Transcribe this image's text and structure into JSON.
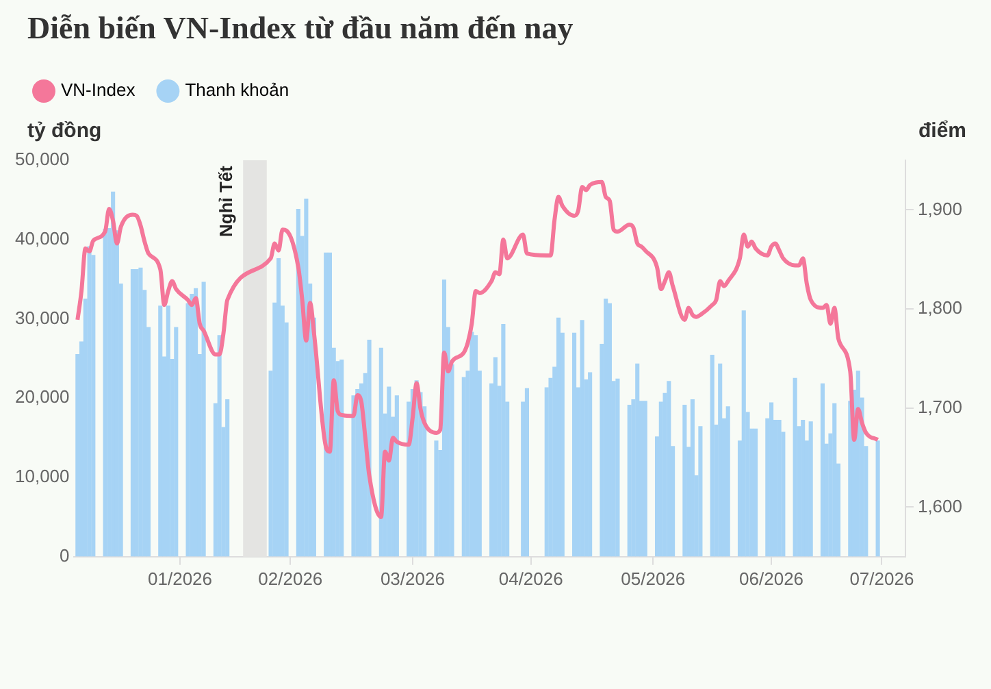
{
  "chart_data": {
    "type": "bar",
    "title": "Diễn biến VN-Index từ đầu năm đến nay",
    "ylabel": "tỷ đồng",
    "y2label": "điểm",
    "x": [
      "2026-01-05",
      "2026-01-06",
      "2026-01-07",
      "2026-01-08",
      "2026-01-09",
      "2026-01-12",
      "2026-01-13",
      "2026-01-14",
      "2026-01-15",
      "2026-01-16",
      "2026-01-19",
      "2026-01-20",
      "2026-01-21",
      "2026-01-22",
      "2026-01-23",
      "2026-01-26",
      "2026-01-27",
      "2026-01-28",
      "2026-01-29",
      "2026-01-30",
      "2026-02-02",
      "2026-02-03",
      "2026-02-04",
      "2026-02-05",
      "2026-02-06",
      "2026-02-09",
      "2026-02-10",
      "2026-02-11",
      "2026-02-12",
      "2026-02-23",
      "2026-02-24",
      "2026-02-25",
      "2026-02-26",
      "2026-02-27",
      "2026-03-02",
      "2026-03-03",
      "2026-03-04",
      "2026-03-05",
      "2026-03-06",
      "2026-03-09",
      "2026-03-10",
      "2026-03-11",
      "2026-03-12",
      "2026-03-13",
      "2026-03-16",
      "2026-03-17",
      "2026-03-18",
      "2026-03-19",
      "2026-03-20",
      "2026-03-23",
      "2026-03-24",
      "2026-03-25",
      "2026-03-26",
      "2026-03-27",
      "2026-03-30",
      "2026-03-31",
      "2026-04-01",
      "2026-04-02",
      "2026-04-03",
      "2026-04-06",
      "2026-04-07",
      "2026-04-08",
      "2026-04-09",
      "2026-04-10",
      "2026-04-13",
      "2026-04-14",
      "2026-04-15",
      "2026-04-16",
      "2026-04-17",
      "2026-04-20",
      "2026-04-21",
      "2026-04-22",
      "2026-04-23",
      "2026-04-24",
      "2026-04-28",
      "2026-04-29",
      "2026-05-04",
      "2026-05-05",
      "2026-05-06",
      "2026-05-07",
      "2026-05-08",
      "2026-05-11",
      "2026-05-12",
      "2026-05-13",
      "2026-05-14",
      "2026-05-15",
      "2026-05-18",
      "2026-05-19",
      "2026-05-20",
      "2026-05-21",
      "2026-05-22",
      "2026-05-25",
      "2026-05-26",
      "2026-05-27",
      "2026-05-28",
      "2026-05-29",
      "2026-06-01",
      "2026-06-02",
      "2026-06-03",
      "2026-06-04",
      "2026-06-05",
      "2026-06-08",
      "2026-06-09",
      "2026-06-10",
      "2026-06-11",
      "2026-06-12",
      "2026-06-15",
      "2026-06-16",
      "2026-06-17",
      "2026-06-18",
      "2026-06-19",
      "2026-06-22",
      "2026-06-23",
      "2026-06-24",
      "2026-06-25",
      "2026-06-26",
      "2026-06-29",
      "2026-06-30",
      "2026-07-01",
      "2026-07-02",
      "2026-07-03",
      "2026-07-06",
      "2026-07-07",
      "2026-07-08",
      "2026-07-09",
      "2026-07-10",
      "2026-07-13",
      "2026-07-14",
      "2026-07-15",
      "2026-07-16",
      "2026-07-17",
      "2026-07-20",
      "2026-07-21",
      "2026-07-22",
      "2026-07-23",
      "2026-07-24",
      "2026-07-27"
    ],
    "series": [
      {
        "name": "VN-Index",
        "type": "line",
        "axis": "y2",
        "color": "#f4779a",
        "values": [
          1789,
          1818,
          1861,
          1858,
          1869,
          1878,
          1901,
          1889,
          1866,
          1883,
          1895,
          1894,
          1884,
          1868,
          1856,
          1840,
          1804,
          1818,
          1828,
          1820,
          1809,
          1804,
          1811,
          1785,
          1778,
          1754,
          1754,
          1775,
          1809,
          1851,
          1866,
          1859,
          1880,
          1879,
          1842,
          1809,
          1768,
          1806,
          1775,
          1661,
          1656,
          1728,
          1697,
          1693,
          1692,
          1713,
          1706,
          1670,
          1632,
          1590,
          1656,
          1647,
          1670,
          1666,
          1663,
          1690,
          1725,
          1699,
          1685,
          1675,
          1678,
          1756,
          1737,
          1747,
          1756,
          1766,
          1785,
          1818,
          1816,
          1828,
          1837,
          1835,
          1870,
          1851,
          1875,
          1856,
          1854,
          1854,
          1890,
          1913,
          1904,
          1894,
          1899,
          1923,
          1920,
          1925,
          1928,
          1913,
          1909,
          1880,
          1878,
          1885,
          1882,
          1866,
          1863,
          1859,
          1842,
          1820,
          1828,
          1837,
          1823,
          1789,
          1801,
          1794,
          1792,
          1794,
          1804,
          1809,
          1828,
          1823,
          1828,
          1851,
          1875,
          1863,
          1868,
          1861,
          1854,
          1863,
          1866,
          1859,
          1851,
          1844,
          1844,
          1851,
          1825,
          1809,
          1801,
          1804,
          1785,
          1801,
          1770,
          1737,
          1668,
          1699,
          1685,
          1675,
          1668
        ]
      },
      {
        "name": "Thanh khoản",
        "color": "#a6d3f5",
        "values": [
          25500,
          27100,
          32500,
          39100,
          38000,
          41300,
          41400,
          46000,
          41100,
          34400,
          36200,
          36200,
          36400,
          33600,
          28900,
          31600,
          25200,
          31600,
          24900,
          28900,
          31900,
          33100,
          33800,
          25500,
          34600,
          19300,
          27900,
          16300,
          19800,
          23400,
          32000,
          37600,
          31600,
          29500,
          43800,
          40400,
          45100,
          34400,
          30100,
          38300,
          38300,
          26300,
          24600,
          24800,
          20300,
          21100,
          21800,
          23100,
          27300,
          26300,
          18000,
          21400,
          17600,
          20300,
          19500,
          21100,
          22200,
          20700,
          18900,
          14600,
          13400,
          34900,
          28900,
          24200,
          22600,
          23400,
          28300,
          27900,
          23400,
          21800,
          25100,
          21500,
          29300,
          19500,
          19500,
          21200,
          21300,
          22500,
          23900,
          30100,
          28200,
          28200,
          21300,
          29800,
          22300,
          23200,
          26800,
          32500,
          31900,
          22100,
          22400,
          19100,
          19800,
          24300,
          19600,
          19600,
          15100,
          19500,
          20600,
          22100,
          13900,
          19100,
          13800,
          19800,
          10200,
          16400,
          25400,
          16600,
          24300,
          17400,
          18900,
          14600,
          31000,
          18200,
          16100,
          16100,
          17400,
          19400,
          17200,
          17200,
          15700,
          22500,
          16400,
          17200,
          14600,
          17000,
          21800,
          14200,
          15500,
          19300,
          11700,
          19600,
          21000,
          23400,
          20000,
          13900,
          14600
        ]
      }
    ],
    "xlim": [
      "2026-01-04",
      "2026-08-03"
    ],
    "xticks": [
      {
        "value": "2026-01-31",
        "label": "01/2026"
      },
      {
        "value": "2026-02-28",
        "label": "02/2026"
      },
      {
        "value": "2026-03-31",
        "label": "03/2026"
      },
      {
        "value": "2026-04-30",
        "label": "04/2026"
      },
      {
        "value": "2026-05-31",
        "label": "05/2026"
      },
      {
        "value": "2026-06-30",
        "label": "06/2026"
      },
      {
        "value": "2026-07-28",
        "label": "07/2026"
      }
    ],
    "ylim": [
      0,
      50000
    ],
    "yticks": [
      {
        "value": 0,
        "label": "0"
      },
      {
        "value": 10000,
        "label": "10,000"
      },
      {
        "value": 20000,
        "label": "20,000"
      },
      {
        "value": 30000,
        "label": "30,000"
      },
      {
        "value": 40000,
        "label": "40,000"
      },
      {
        "value": 50000,
        "label": "50,000"
      }
    ],
    "y2lim": [
      1550,
      1950
    ],
    "y2ticks": [
      {
        "value": 1600,
        "label": "1,600"
      },
      {
        "value": 1700,
        "label": "1,700"
      },
      {
        "value": 1800,
        "label": "1,800"
      },
      {
        "value": 1900,
        "label": "1,900"
      }
    ],
    "bands": [
      {
        "axis": "x",
        "from": "2026-02-16",
        "to": "2026-02-22",
        "label": "Nghỉ Tết",
        "color": "#e4e4e2"
      }
    ],
    "legend": "top left"
  }
}
